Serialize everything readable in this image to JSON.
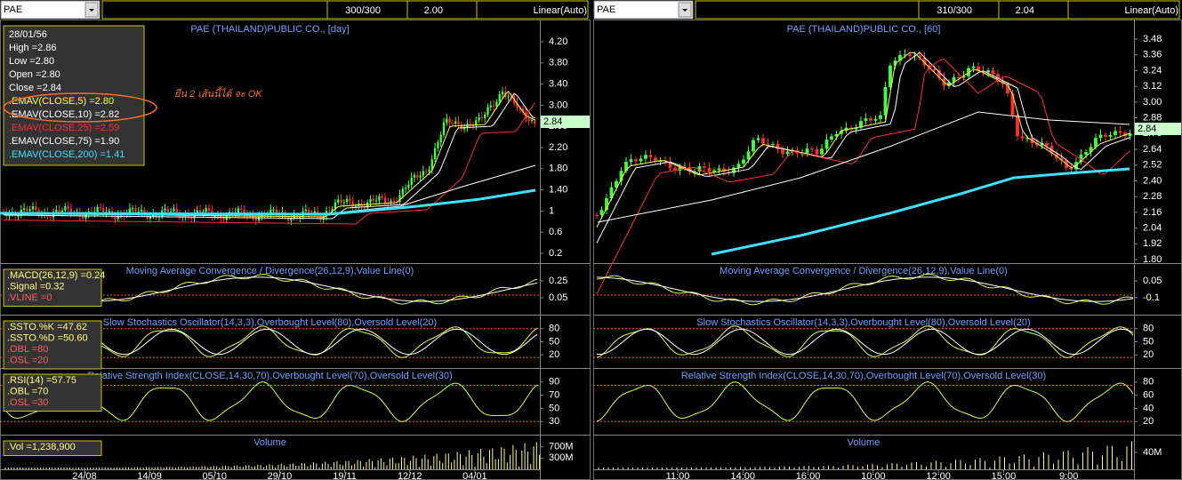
{
  "panels": [
    {
      "symbol": "PAE",
      "bars": "300/300",
      "scale": "2.00",
      "mode": "Linear(Auto)",
      "title": "PAE (THAILAND)PUBLIC CO., [day]",
      "price_ticks": [
        "4.20",
        "3.80",
        "3.40",
        "3.00",
        "2.60",
        "2.20",
        "1.80",
        "1.40",
        "1",
        "0.6",
        "0.2"
      ],
      "last_price": "2.84",
      "info": [
        "28/01/56",
        "High =2.86",
        "Low =2.80",
        "Open =2.80",
        "Close =2.84"
      ],
      "emav": [
        {
          "text": ".EMAV(CLOSE,5)  =2.80",
          "color": "#ffff40"
        },
        {
          "text": ".EMAV(CLOSE,10)  =2.82",
          "color": "#ffffff"
        },
        {
          "text": ".EMAV(CLOSE,25)  =2.59",
          "color": "#ff3030"
        },
        {
          "text": ".EMAV(CLOSE,75)  =1.90",
          "color": "#ffffff"
        },
        {
          "text": ".EMAV(CLOSE,200)  =1.41",
          "color": "#40e0ff"
        }
      ],
      "annotation": "ยืน 2 เส้นนี้ได้ จะ OK",
      "panes": [
        {
          "title": "Moving Average Convergence / Divergence(26,12,9),Value Line(0)",
          "ticks": [
            "0.25",
            "0.05"
          ],
          "legend": [
            ".MACD(26,12,9)  =0.24",
            ".Signal  =0.32",
            ".VLINE  =0"
          ]
        },
        {
          "title": "Slow Stochastics Oscillator(14,3,3),Overbought Level(80),Oversold Level(20)",
          "ticks": [
            "80",
            "50",
            "20"
          ],
          "legend": [
            ".SSTO.%K  =47.62",
            ".SSTO.%D  =50.60",
            ".OBL  =80",
            ".OSL  =20"
          ]
        },
        {
          "title": "Relative Strength Index(CLOSE,14,30,70),Overbought Level(70),Oversold Level(30)",
          "ticks": [
            "90",
            "70",
            "50",
            "30"
          ],
          "legend": [
            ".RSI(14)  =57.75",
            ".OBL  =70",
            ".OSL  =30"
          ]
        },
        {
          "title": "Volume",
          "ticks": [
            "700M",
            "300M"
          ],
          "legend": [
            ".Vol  =1,238,900"
          ]
        }
      ],
      "dates": [
        "24/08",
        "14/09",
        "05/10",
        "29/10",
        "19/11",
        "12/12",
        "04/01"
      ]
    },
    {
      "symbol": "PAE",
      "bars": "310/300",
      "scale": "2.04",
      "mode": "Linear(Auto)",
      "title": "PAE (THAILAND)PUBLIC CO., [60]",
      "price_ticks": [
        "3.48",
        "3.36",
        "3.24",
        "3.12",
        "3.00",
        "2.88",
        "2.76",
        "2.64",
        "2.52",
        "2.40",
        "2.28",
        "2.16",
        "2.04",
        "1.92",
        "1.80"
      ],
      "last_price": "2.84",
      "panes": [
        {
          "title": "Moving Average Convergence / Divergence(26,12,9),Value Line(0)",
          "ticks": [
            "0.05",
            "-0.1"
          ]
        },
        {
          "title": "Slow Stochastics Oscillator(14,3,3),Overbought Level(80),Oversold Level(20)",
          "ticks": [
            "80",
            "50",
            "20"
          ]
        },
        {
          "title": "Relative Strength Index(CLOSE,14,30,70),Overbought Level(70),Oversold Level(30)",
          "ticks": [
            "80",
            "60",
            "40",
            "20"
          ]
        },
        {
          "title": "Volume",
          "ticks": [
            "40M"
          ]
        }
      ],
      "dates": [
        "11:00",
        "14:00",
        "16:00",
        "10:00",
        "12:00",
        "15:00",
        "9:00"
      ]
    }
  ]
}
